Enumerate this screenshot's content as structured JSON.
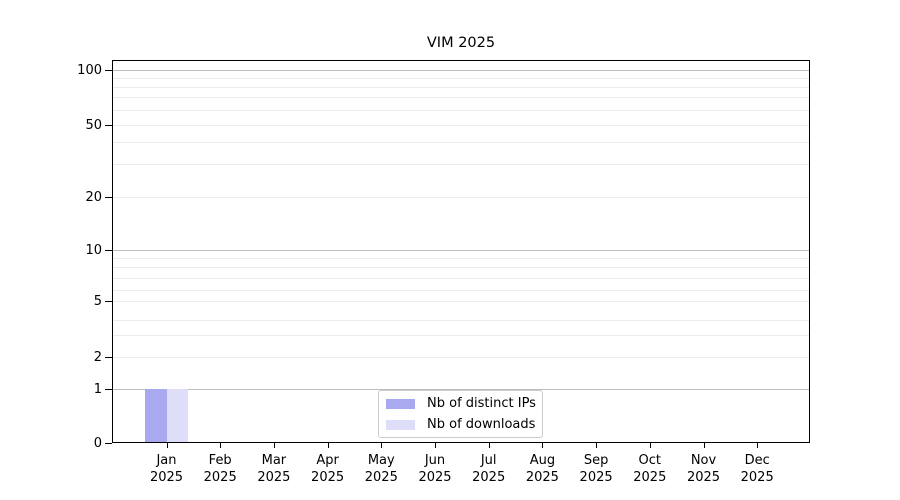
{
  "chart_data": {
    "type": "bar",
    "title": "VIM 2025",
    "categories": [
      "Jan 2025",
      "Feb 2025",
      "Mar 2025",
      "Apr 2025",
      "May 2025",
      "Jun 2025",
      "Jul 2025",
      "Aug 2025",
      "Sep 2025",
      "Oct 2025",
      "Nov 2025",
      "Dec 2025"
    ],
    "series": [
      {
        "name": "Nb of distinct IPs",
        "color": "#a9a9f0",
        "values": [
          1,
          0,
          0,
          0,
          0,
          0,
          0,
          0,
          0,
          0,
          0,
          0
        ]
      },
      {
        "name": "Nb of downloads",
        "color": "#dedef8",
        "values": [
          1,
          0,
          0,
          0,
          0,
          0,
          0,
          0,
          0,
          0,
          0,
          0
        ]
      }
    ],
    "xlabel": "",
    "ylabel": "",
    "y_ticks": [
      0,
      1,
      2,
      5,
      10,
      20,
      50,
      100
    ],
    "yscale": "log-like with zero baseline",
    "ylim": [
      0,
      114
    ],
    "grid": "horizontal, gray majors at powers of 10, faint log minors",
    "legend_position": "inside bottom-center"
  }
}
